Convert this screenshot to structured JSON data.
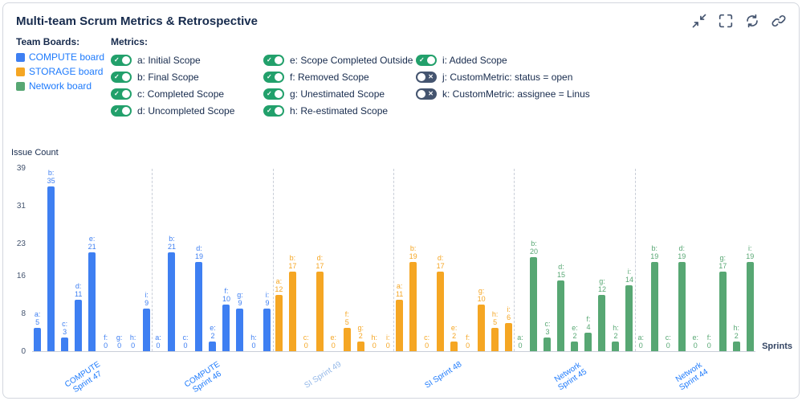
{
  "header": {
    "title": "Multi-team Scrum Metrics & Retrospective",
    "icons": [
      "collapse",
      "fullscreen",
      "refresh",
      "link"
    ]
  },
  "legend": {
    "team_boards_label": "Team Boards:",
    "boards": [
      {
        "label": "COMPUTE board",
        "color": "#3e7ff2"
      },
      {
        "label": "STORAGE board",
        "color": "#f5a623"
      },
      {
        "label": "Network board",
        "color": "#57a773"
      }
    ],
    "metrics_label": "Metrics:",
    "metric_columns": [
      [
        {
          "label": "a: Initial Scope",
          "enabled": true
        },
        {
          "label": "b: Final Scope",
          "enabled": true
        },
        {
          "label": "c: Completed Scope",
          "enabled": true
        },
        {
          "label": "d: Uncompleted Scope",
          "enabled": true
        }
      ],
      [
        {
          "label": "e: Scope Completed Outside",
          "enabled": true
        },
        {
          "label": "f: Removed Scope",
          "enabled": true
        },
        {
          "label": "g: Unestimated Scope",
          "enabled": true
        },
        {
          "label": "h: Re-estimated Scope",
          "enabled": true
        }
      ],
      [
        {
          "label": "i: Added Scope",
          "enabled": true
        },
        {
          "label": "j: CustomMetric: status = open",
          "enabled": false
        },
        {
          "label": "k: CustomMetric: assignee = Linus",
          "enabled": false
        }
      ]
    ]
  },
  "chart_data": {
    "type": "bar",
    "title": "",
    "ylabel": "Issue Count",
    "xlabel": "Sprints",
    "ylim": [
      0,
      39
    ],
    "yticks": [
      0,
      8,
      16,
      23,
      31,
      39
    ],
    "grid": false,
    "metric_keys": [
      "a",
      "b",
      "c",
      "d",
      "e",
      "f",
      "g",
      "h",
      "i"
    ],
    "groups": [
      {
        "label": "COMPUTE\nSprint 47",
        "board": "COMPUTE board",
        "color": "#3e7ff2",
        "label_color": "#1d7afc",
        "values": {
          "a": 5,
          "b": 35,
          "c": 3,
          "d": 11,
          "e": 21,
          "f": 0,
          "g": 0,
          "h": 0,
          "i": 9
        }
      },
      {
        "label": "COMPUTE\nSprint 46",
        "board": "COMPUTE board",
        "color": "#3e7ff2",
        "label_color": "#1d7afc",
        "values": {
          "a": 0,
          "b": 21,
          "c": 0,
          "d": 19,
          "e": 2,
          "f": 10,
          "g": 9,
          "h": 0,
          "i": 9
        }
      },
      {
        "label": "SI Sprint 49",
        "board": "STORAGE board",
        "color": "#f5a623",
        "label_color": "#94b8e8",
        "values": {
          "a": 12,
          "b": 17,
          "c": 0,
          "d": 17,
          "e": 0,
          "f": 5,
          "g": 2,
          "h": 0,
          "i": 0
        }
      },
      {
        "label": "SI Sprint 48",
        "board": "STORAGE board",
        "color": "#f5a623",
        "label_color": "#1d7afc",
        "values": {
          "a": 11,
          "b": 19,
          "c": 0,
          "d": 17,
          "e": 2,
          "f": 0,
          "g": 10,
          "h": 5,
          "i": 6
        }
      },
      {
        "label": "Network\nSprint 45",
        "board": "Network board",
        "color": "#57a773",
        "label_color": "#1d7afc",
        "values": {
          "a": 0,
          "b": 20,
          "c": 3,
          "d": 15,
          "e": 2,
          "f": 4,
          "g": 12,
          "h": 2,
          "i": 14
        }
      },
      {
        "label": "Network\nSprint 44",
        "board": "Network board",
        "color": "#57a773",
        "label_color": "#1d7afc",
        "values": {
          "a": 0,
          "b": 19,
          "c": 0,
          "d": 19,
          "e": 0,
          "f": 0,
          "g": 17,
          "h": 2,
          "i": 19
        }
      }
    ]
  }
}
